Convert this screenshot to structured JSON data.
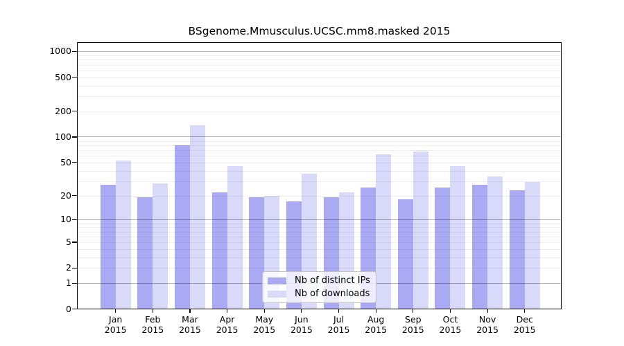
{
  "figure": {
    "background": "#ffffff"
  },
  "chart_data": {
    "type": "bar",
    "title": "BSgenome.Mmusculus.UCSC.mm8.masked 2015",
    "y_scale": "log10(1+x)",
    "ylim": [
      0,
      1000
    ],
    "y_ticks": [
      0,
      1,
      2,
      5,
      10,
      20,
      50,
      100,
      200,
      500,
      1000
    ],
    "grid_major": [
      1,
      10,
      100,
      1000
    ],
    "grid_minor": [
      2,
      3,
      4,
      5,
      6,
      7,
      8,
      9,
      20,
      30,
      40,
      50,
      60,
      70,
      80,
      90,
      200,
      300,
      400,
      500,
      600,
      700,
      800,
      900
    ],
    "categories": [
      {
        "month": "Jan",
        "year": "2015"
      },
      {
        "month": "Feb",
        "year": "2015"
      },
      {
        "month": "Mar",
        "year": "2015"
      },
      {
        "month": "Apr",
        "year": "2015"
      },
      {
        "month": "May",
        "year": "2015"
      },
      {
        "month": "Jun",
        "year": "2015"
      },
      {
        "month": "Jul",
        "year": "2015"
      },
      {
        "month": "Aug",
        "year": "2015"
      },
      {
        "month": "Sep",
        "year": "2015"
      },
      {
        "month": "Oct",
        "year": "2015"
      },
      {
        "month": "Nov",
        "year": "2015"
      },
      {
        "month": "Dec",
        "year": "2015"
      }
    ],
    "series": [
      {
        "name": "Nb of distinct IPs",
        "color": "#a9a9f4",
        "values": [
          27,
          19,
          80,
          22,
          19,
          17,
          19,
          25,
          18,
          25,
          27,
          23
        ]
      },
      {
        "name": "Nb of downloads",
        "color": "#d9d9fa",
        "values": [
          53,
          28,
          138,
          45,
          20,
          37,
          22,
          62,
          67,
          45,
          34,
          29
        ]
      }
    ],
    "legend_position": "bottom-center",
    "colors": {
      "frame": "#000000",
      "grid_major": "rgba(0,0,0,0.30)",
      "grid_minor": "rgba(0,0,0,0.065)",
      "text": "#000000"
    }
  }
}
